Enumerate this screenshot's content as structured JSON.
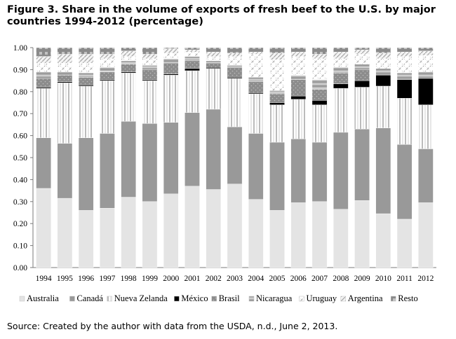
{
  "title": "Figure 3. Share in the volume of exports of fresh beef to the U.S. by major countries 1994-2012 (percentage)",
  "source": "Source: Created by the author with data from the USDA, n.d., June 2, 2013.",
  "chart_data": {
    "type": "bar",
    "stacked": true,
    "ylim": [
      0,
      1
    ],
    "yticks": [
      "0.00",
      "0.10",
      "0.20",
      "0.30",
      "0.40",
      "0.50",
      "0.60",
      "0.70",
      "0.80",
      "0.90",
      "1.00"
    ],
    "grid": false,
    "legend_position": "bottom",
    "categories": [
      "1994",
      "1995",
      "1996",
      "1997",
      "1998",
      "1999",
      "2000",
      "2001",
      "2002",
      "2003",
      "2004",
      "2005",
      "2006",
      "2007",
      "2008",
      "2009",
      "2010",
      "2011",
      "2012"
    ],
    "series": [
      {
        "name": "Australia",
        "values": [
          0.36,
          0.315,
          0.26,
          0.27,
          0.32,
          0.3,
          0.335,
          0.37,
          0.355,
          0.38,
          0.31,
          0.26,
          0.295,
          0.3,
          0.265,
          0.305,
          0.245,
          0.22,
          0.295
        ]
      },
      {
        "name": "Canadá",
        "values": [
          0.23,
          0.25,
          0.33,
          0.34,
          0.345,
          0.355,
          0.325,
          0.335,
          0.365,
          0.26,
          0.3,
          0.31,
          0.29,
          0.27,
          0.35,
          0.325,
          0.39,
          0.34,
          0.245
        ]
      },
      {
        "name": "Nueva Zelanda",
        "values": [
          0.225,
          0.275,
          0.235,
          0.24,
          0.22,
          0.195,
          0.215,
          0.19,
          0.185,
          0.22,
          0.18,
          0.17,
          0.18,
          0.17,
          0.2,
          0.19,
          0.19,
          0.21,
          0.2
        ]
      },
      {
        "name": "México",
        "values": [
          0.005,
          0.005,
          0.005,
          0.005,
          0.005,
          0.005,
          0.005,
          0.01,
          0.005,
          0.005,
          0.005,
          0.01,
          0.015,
          0.02,
          0.02,
          0.03,
          0.05,
          0.085,
          0.12
        ]
      },
      {
        "name": "Brasil",
        "values": [
          0.04,
          0.03,
          0.035,
          0.035,
          0.035,
          0.045,
          0.05,
          0.035,
          0.02,
          0.045,
          0.05,
          0.04,
          0.075,
          0.05,
          0.05,
          0.05,
          0.0,
          0.0,
          0.0
        ]
      },
      {
        "name": "Nicaragua",
        "values": [
          0.03,
          0.015,
          0.02,
          0.02,
          0.015,
          0.02,
          0.02,
          0.02,
          0.01,
          0.01,
          0.02,
          0.015,
          0.02,
          0.045,
          0.025,
          0.025,
          0.03,
          0.03,
          0.03
        ]
      },
      {
        "name": "Uruguay",
        "values": [
          0.04,
          0.04,
          0.045,
          0.04,
          0.02,
          0.03,
          0.025,
          0.02,
          0.02,
          0.04,
          0.105,
          0.14,
          0.085,
          0.095,
          0.04,
          0.045,
          0.045,
          0.075,
          0.075
        ]
      },
      {
        "name": "Argentina",
        "values": [
          0.03,
          0.04,
          0.04,
          0.02,
          0.025,
          0.02,
          0.02,
          0.01,
          0.02,
          0.015,
          0.01,
          0.03,
          0.02,
          0.02,
          0.03,
          0.02,
          0.025,
          0.02,
          0.02
        ]
      },
      {
        "name": "Resto",
        "values": [
          0.04,
          0.03,
          0.03,
          0.03,
          0.015,
          0.03,
          0.005,
          0.01,
          0.02,
          0.025,
          0.02,
          0.025,
          0.02,
          0.03,
          0.02,
          0.01,
          0.025,
          0.02,
          0.015
        ]
      }
    ],
    "colors": {
      "Australia": "#e4e4e4",
      "Canadá": "#999999",
      "Nueva Zelanda": "#ffffff",
      "México": "#000000",
      "Brasil": "#8c8c8c",
      "Nicaragua": "#aaaaaa",
      "Uruguay": "#ffffff",
      "Argentina": "#f2f2f2",
      "Resto": "#8a8a8a"
    }
  }
}
